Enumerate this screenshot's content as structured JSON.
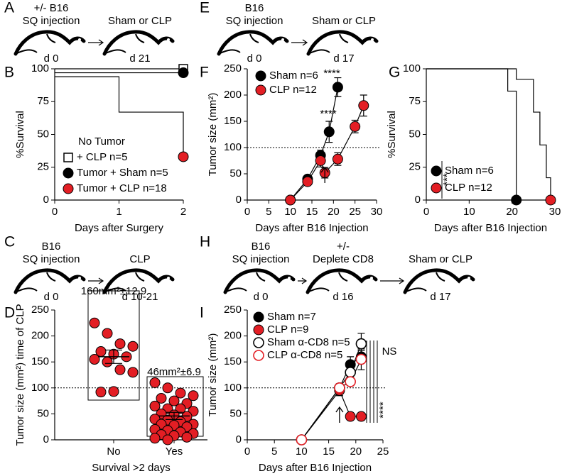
{
  "panel_labels": [
    "A",
    "B",
    "C",
    "D",
    "E",
    "F",
    "G",
    "H",
    "I"
  ],
  "schematics": [
    {
      "steps": [
        {
          "label": [
            "+/- B16",
            "SQ injection"
          ],
          "day": "d 0"
        },
        {
          "label": [
            "Sham or CLP"
          ],
          "day": "d 21"
        }
      ]
    },
    {
      "steps": [
        {
          "label": [
            "B16",
            "SQ injection"
          ],
          "day": "d 0"
        },
        {
          "label": [
            "Sham or CLP"
          ],
          "day": "d 17"
        }
      ]
    },
    {
      "steps": [
        {
          "label": [
            "B16",
            "SQ injection"
          ],
          "day": "d 0"
        },
        {
          "label": [
            "CLP"
          ],
          "day": "d 10-21"
        }
      ]
    },
    {
      "steps": [
        {
          "label": [
            "B16",
            "SQ injection"
          ],
          "day": "d 0"
        },
        {
          "label": [
            "+/-",
            "Deplete CD8"
          ],
          "day": "d 16"
        },
        {
          "label": [
            "Sham or CLP"
          ],
          "day": "d 17"
        }
      ]
    }
  ],
  "chart_data": [
    {
      "type": "line",
      "markers": "last",
      "line_color": "#000000",
      "x_label": "Days after Surgery",
      "y_label": "%Survival",
      "xlim": [
        0,
        2
      ],
      "xticks": [
        0,
        1,
        2
      ],
      "ylim": [
        0,
        100
      ],
      "yticks": [
        0,
        25,
        50,
        75,
        100
      ],
      "legend_header": "No Tumor",
      "series": [
        {
          "name": "+ CLP n=5",
          "color": "#000000",
          "marker": "square-open",
          "x": [
            0,
            2
          ],
          "values": [
            100,
            100
          ]
        },
        {
          "name": "Tumor + Sham n=5",
          "color": "#000000",
          "marker": "circle",
          "x": [
            0,
            2
          ],
          "values": [
            97,
            97
          ]
        },
        {
          "name": "Tumor + CLP n=18",
          "color": "#e31e24",
          "marker": "circle",
          "x": [
            0,
            1,
            1,
            2,
            2
          ],
          "values": [
            94,
            94,
            67,
            67,
            33
          ]
        }
      ]
    },
    {
      "type": "line",
      "markers": "all",
      "line_color": "#000000",
      "x_label": "Days after B16 Injection",
      "y_label": "Tumor size (mm²)",
      "xlim": [
        0,
        30
      ],
      "xticks": [
        0,
        5,
        10,
        15,
        20,
        25,
        30
      ],
      "ylim": [
        0,
        250
      ],
      "yticks": [
        0,
        50,
        100,
        150,
        200,
        250
      ],
      "reference_line": 100,
      "annotations": [
        "****",
        "****"
      ],
      "series": [
        {
          "name": "Sham n=6",
          "color": "#000000",
          "marker": "circle",
          "x": [
            10,
            14,
            17,
            19,
            21
          ],
          "values": [
            0,
            40,
            85,
            130,
            215
          ],
          "errors": [
            0,
            4,
            10,
            20,
            18
          ]
        },
        {
          "name": "CLP n=12",
          "color": "#e31e24",
          "marker": "circle",
          "x": [
            10,
            14,
            17,
            18,
            21,
            25,
            27
          ],
          "values": [
            0,
            35,
            75,
            52,
            78,
            140,
            180
          ],
          "errors": [
            0,
            3,
            12,
            10,
            12,
            12,
            20
          ]
        }
      ]
    },
    {
      "type": "line",
      "markers": "last",
      "line_color": "#000000",
      "x_label": "Days after B16 Injection",
      "y_label": "%Survival",
      "xlim": [
        0,
        30
      ],
      "xticks": [
        0,
        10,
        20,
        30
      ],
      "ylim": [
        0,
        100
      ],
      "yticks": [
        0,
        25,
        50,
        75,
        100
      ],
      "annotations": [
        "***"
      ],
      "series": [
        {
          "name": "Sham n=6",
          "color": "#000000",
          "marker": "circle",
          "x": [
            0,
            19,
            19,
            21,
            21
          ],
          "values": [
            100,
            100,
            83,
            83,
            0
          ]
        },
        {
          "name": "CLP n=12",
          "color": "#e31e24",
          "marker": "circle",
          "x": [
            0,
            21,
            21,
            25,
            25,
            26.5,
            26.5,
            28,
            28,
            29,
            29
          ],
          "values": [
            100,
            100,
            92,
            92,
            67,
            67,
            42,
            42,
            17,
            17,
            0
          ]
        }
      ]
    },
    {
      "type": "dot",
      "color": "#e31e24",
      "x_label": "Survival >2 days",
      "y_label": "Tumor size (mm²) time of CLP",
      "ylim": [
        0,
        250
      ],
      "yticks": [
        0,
        50,
        100,
        150,
        200,
        250
      ],
      "reference_line": 100,
      "categories": [
        "No",
        "Yes"
      ],
      "groups": [
        {
          "values": [
            225,
            205,
            185,
            180,
            170,
            165,
            160,
            155,
            150,
            135,
            130,
            92,
            93
          ],
          "mean": 160,
          "sem": 12.9,
          "annotation": "160mm²±12.9"
        },
        {
          "values": [
            110,
            100,
            90,
            85,
            80,
            75,
            70,
            65,
            60,
            60,
            55,
            50,
            48,
            45,
            40,
            38,
            35,
            30,
            30,
            28,
            25,
            20,
            18,
            15,
            12,
            10,
            8,
            5,
            3,
            0
          ],
          "mean": 46,
          "sem": 6.9,
          "annotation": "46mm²±6.9"
        }
      ]
    },
    {
      "type": "line",
      "markers": "all",
      "line_color": "#000000",
      "x_label": "Days after B16 Injection",
      "y_label": "Tumor size (mm²)",
      "xlim": [
        0,
        25
      ],
      "xticks": [
        0,
        5,
        10,
        15,
        20,
        25
      ],
      "ylim": [
        0,
        250
      ],
      "yticks": [
        0,
        50,
        100,
        150,
        200,
        250
      ],
      "reference_line": 100,
      "annotations": [
        "NS",
        "****"
      ],
      "series": [
        {
          "name": "Sham n=7",
          "color": "#000000",
          "marker": "circle",
          "x": [
            10,
            17,
            19,
            21
          ],
          "values": [
            0,
            100,
            145,
            160
          ],
          "errors": [
            0,
            8,
            15,
            12
          ]
        },
        {
          "name": "CLP n=9",
          "color": "#e31e24",
          "marker": "circle",
          "x": [
            10,
            17,
            19,
            21
          ],
          "values": [
            0,
            95,
            45,
            45
          ],
          "errors": [
            0,
            10,
            5,
            3
          ]
        },
        {
          "name": "Sham α-CD8 n=5",
          "color": "#000000",
          "marker": "circle-open",
          "x": [
            10,
            17,
            19,
            21
          ],
          "values": [
            0,
            100,
            130,
            185
          ],
          "errors": [
            0,
            5,
            10,
            20
          ]
        },
        {
          "name": "CLP α-CD8 n=5",
          "color": "#e31e24",
          "marker": "circle-open",
          "x": [
            10,
            17,
            19,
            21
          ],
          "values": [
            0,
            100,
            112,
            155
          ],
          "errors": [
            0,
            8,
            8,
            20
          ]
        }
      ]
    }
  ]
}
